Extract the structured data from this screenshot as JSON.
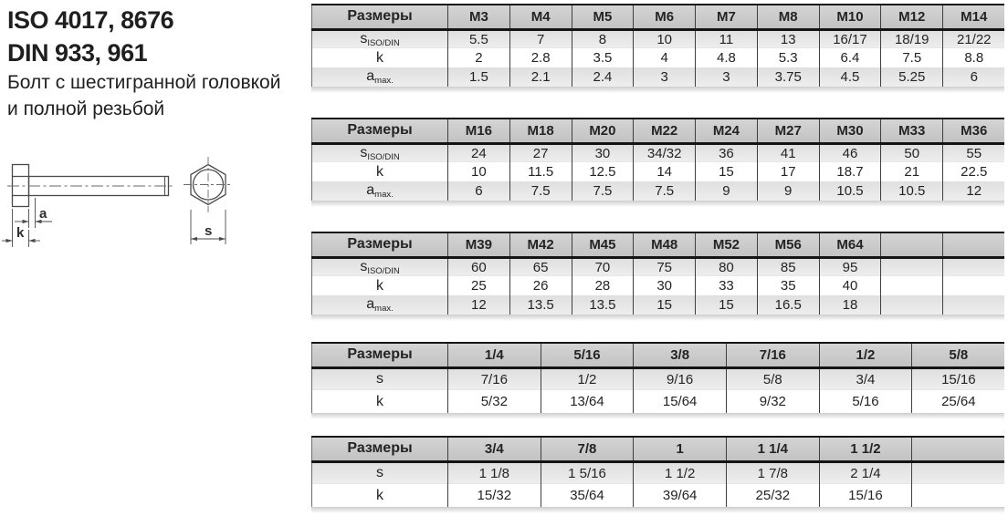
{
  "title": {
    "standards_line1": "ISO 4017, 8676",
    "standards_line2": "DIN 933, 961",
    "description_line1": "Болт с шестигранной головкой",
    "description_line2": "и полной резьбой"
  },
  "diagram": {
    "dim_a": "a",
    "dim_k": "k",
    "dim_s": "s"
  },
  "colors": {
    "header_top": "#d4d4d4",
    "header_bottom": "#c3c3c3",
    "stripe_top": "#dfdfdf",
    "stripe_bottom": "#eeeeee",
    "text": "#1f1f1f"
  },
  "tables": [
    {
      "id": "metric-small",
      "size_header": "Размеры",
      "columns": [
        "M3",
        "M4",
        "M5",
        "M6",
        "M7",
        "M8",
        "M10",
        "M12",
        "M14"
      ],
      "rows": [
        {
          "label": "s",
          "sub": "ISO/DIN",
          "values": [
            "5.5",
            "7",
            "8",
            "10",
            "11",
            "13",
            "16/17",
            "18/19",
            "21/22"
          ]
        },
        {
          "label": "k",
          "sub": "",
          "values": [
            "2",
            "2.8",
            "3.5",
            "4",
            "4.8",
            "5.3",
            "6.4",
            "7.5",
            "8.8"
          ]
        },
        {
          "label": "a",
          "sub": "max.",
          "values": [
            "1.5",
            "2.1",
            "2.4",
            "3",
            "3",
            "3.75",
            "4.5",
            "5.25",
            "6"
          ]
        }
      ]
    },
    {
      "id": "metric-medium",
      "size_header": "Размеры",
      "columns": [
        "M16",
        "M18",
        "M20",
        "M22",
        "M24",
        "M27",
        "M30",
        "M33",
        "M36"
      ],
      "rows": [
        {
          "label": "s",
          "sub": "ISO/DIN",
          "values": [
            "24",
            "27",
            "30",
            "34/32",
            "36",
            "41",
            "46",
            "50",
            "55"
          ]
        },
        {
          "label": "k",
          "sub": "",
          "values": [
            "10",
            "11.5",
            "12.5",
            "14",
            "15",
            "17",
            "18.7",
            "21",
            "22.5"
          ]
        },
        {
          "label": "a",
          "sub": "max.",
          "values": [
            "6",
            "7.5",
            "7.5",
            "7.5",
            "9",
            "9",
            "10.5",
            "10.5",
            "12"
          ]
        }
      ]
    },
    {
      "id": "metric-large",
      "size_header": "Размеры",
      "columns": [
        "M39",
        "M42",
        "M45",
        "M48",
        "M52",
        "M56",
        "M64",
        "",
        ""
      ],
      "rows": [
        {
          "label": "s",
          "sub": "ISO/DIN",
          "values": [
            "60",
            "65",
            "70",
            "75",
            "80",
            "85",
            "95",
            "",
            ""
          ]
        },
        {
          "label": "k",
          "sub": "",
          "values": [
            "25",
            "26",
            "28",
            "30",
            "33",
            "35",
            "40",
            "",
            ""
          ]
        },
        {
          "label": "a",
          "sub": "max.",
          "values": [
            "12",
            "13.5",
            "13.5",
            "15",
            "15",
            "16.5",
            "18",
            "",
            ""
          ]
        }
      ]
    },
    {
      "id": "inch-small",
      "size_header": "Размеры",
      "columns": [
        "1/4",
        "5/16",
        "3/8",
        "7/16",
        "1/2",
        "5/8"
      ],
      "rows": [
        {
          "label": "s",
          "sub": "",
          "values": [
            "7/16",
            "1/2",
            "9/16",
            "5/8",
            "3/4",
            "15/16"
          ]
        },
        {
          "label": "k",
          "sub": "",
          "values": [
            "5/32",
            "13/64",
            "15/64",
            "9/32",
            "5/16",
            "25/64"
          ]
        }
      ]
    },
    {
      "id": "inch-large",
      "size_header": "Размеры",
      "columns": [
        "3/4",
        "7/8",
        "1",
        "1 1/4",
        "1 1/2",
        ""
      ],
      "rows": [
        {
          "label": "s",
          "sub": "",
          "values": [
            "1 1/8",
            "1 5/16",
            "1 1/2",
            "1 7/8",
            "2 1/4",
            ""
          ]
        },
        {
          "label": "k",
          "sub": "",
          "values": [
            "15/32",
            "35/64",
            "39/64",
            "25/32",
            "15/16",
            ""
          ]
        }
      ]
    }
  ]
}
